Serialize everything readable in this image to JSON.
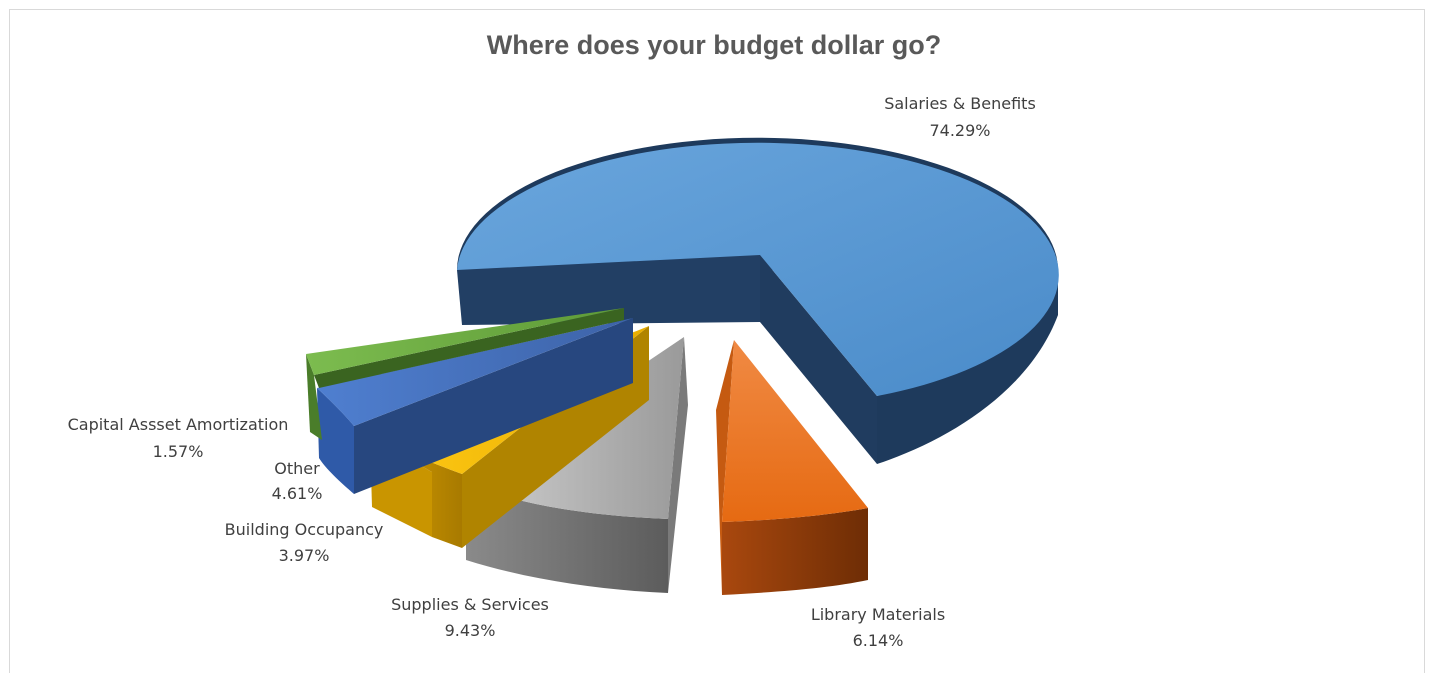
{
  "chart_data": {
    "type": "pie",
    "style": "3d-exploded",
    "title": "Where does your budget dollar go?",
    "legend": "none",
    "slices": [
      {
        "label": "Salaries & Benefits",
        "value": 74.29,
        "display": "74.29%",
        "color": "#5b9bd5"
      },
      {
        "label": "Library Materials",
        "value": 6.14,
        "display": "6.14%",
        "color": "#ed7d31"
      },
      {
        "label": "Supplies & Services",
        "value": 9.43,
        "display": "9.43%",
        "color": "#a5a5a5"
      },
      {
        "label": "Building Occupancy",
        "value": 3.97,
        "display": "3.97%",
        "color": "#ffc000"
      },
      {
        "label": "Other",
        "value": 4.61,
        "display": "4.61%",
        "color": "#4472c4"
      },
      {
        "label": "Capital Assset Amortization",
        "value": 1.57,
        "display": "1.57%",
        "color": "#70ad47"
      }
    ]
  }
}
